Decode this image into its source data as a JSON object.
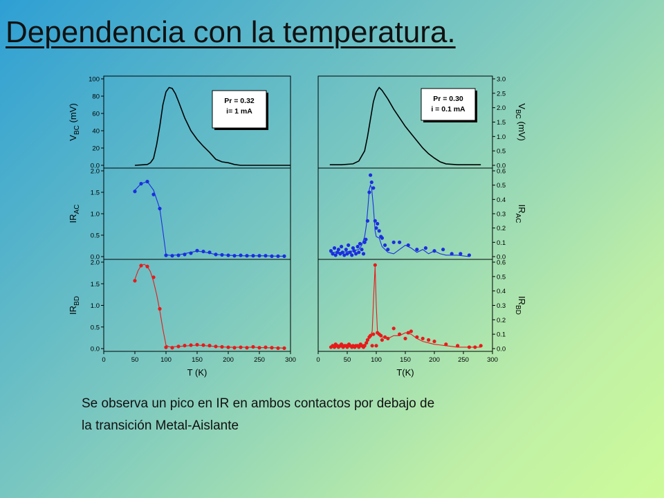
{
  "slide": {
    "title": "Dependencia con la temperatura.",
    "caption_lines": [
      "Se observa un pico en IR en ambos contactos por debajo de",
      "la transición Metal-Aislante"
    ]
  },
  "chart_data": [
    {
      "type": "line",
      "panel": "left-top",
      "ylabel_main": "V",
      "ylabel_sub": "BC",
      "ylabel_unit": " (mV)",
      "xlim": [
        0,
        300
      ],
      "ylim": [
        0,
        100
      ],
      "yticks": [
        "0.0",
        "20",
        "40",
        "60",
        "80",
        "100"
      ],
      "annotation": [
        "Pr = 0.32",
        "i= 1 mA"
      ],
      "color": "#000000",
      "series": [
        {
          "x": [
            50,
            60,
            70,
            75,
            80,
            85,
            90,
            95,
            100,
            105,
            110,
            115,
            120,
            130,
            140,
            150,
            160,
            170,
            180,
            190,
            200,
            210,
            220,
            250,
            300
          ],
          "y": [
            0,
            0.5,
            1,
            3,
            8,
            24,
            45,
            70,
            85,
            90,
            89,
            83,
            74,
            55,
            40,
            30,
            22,
            15,
            7,
            4,
            3,
            1,
            0,
            0,
            0
          ]
        }
      ]
    },
    {
      "type": "line",
      "panel": "right-top",
      "ylabel_main": "V",
      "ylabel_sub": "BC",
      "ylabel_unit": " (mV)",
      "xlim": [
        0,
        300
      ],
      "ylim": [
        0,
        3
      ],
      "yticks": [
        "0.0",
        "0.5",
        "1.0",
        "1.5",
        "2.0",
        "2.5",
        "3.0"
      ],
      "annotation": [
        "Pr = 0.30",
        "i = 0.1 mA"
      ],
      "color": "#000000",
      "series": [
        {
          "x": [
            20,
            40,
            60,
            70,
            80,
            85,
            90,
            95,
            100,
            105,
            110,
            115,
            120,
            130,
            140,
            150,
            160,
            170,
            180,
            190,
            200,
            210,
            220,
            240,
            260,
            280
          ],
          "y": [
            0.02,
            0.02,
            0.05,
            0.15,
            0.5,
            1.0,
            1.6,
            2.2,
            2.55,
            2.7,
            2.6,
            2.45,
            2.3,
            1.95,
            1.65,
            1.35,
            1.1,
            0.85,
            0.6,
            0.4,
            0.25,
            0.12,
            0.05,
            0.02,
            0.02,
            0.02
          ]
        }
      ]
    },
    {
      "type": "scatter",
      "panel": "left-middle",
      "ylabel_main": "IR",
      "ylabel_sub": "AC",
      "xlim": [
        0,
        300
      ],
      "ylim": [
        0,
        2.0
      ],
      "yticks": [
        "0.0",
        "0.5",
        "1.0",
        "1.5",
        "2.0"
      ],
      "color": "#1a2ee0",
      "series": [
        {
          "x": [
            50,
            60,
            70,
            80,
            90,
            100,
            110,
            120,
            130,
            140,
            150,
            160,
            170,
            180,
            190,
            200,
            210,
            220,
            230,
            240,
            250,
            260,
            270,
            280,
            290
          ],
          "y": [
            1.52,
            1.7,
            1.75,
            1.45,
            1.12,
            0.03,
            0.02,
            0.03,
            0.05,
            0.08,
            0.14,
            0.12,
            0.1,
            0.05,
            0.04,
            0.03,
            0.02,
            0.03,
            0.02,
            0.02,
            0.02,
            0.02,
            0.01,
            0.01,
            0.01
          ]
        }
      ],
      "fit": {
        "x": [
          50,
          60,
          70,
          80,
          90,
          95,
          100,
          105,
          110,
          120,
          130,
          140,
          150,
          160,
          170,
          180,
          190,
          200,
          220,
          240,
          260,
          280,
          290
        ],
        "y": [
          1.55,
          1.7,
          1.75,
          1.55,
          1.12,
          0.6,
          0.05,
          0.03,
          0.03,
          0.04,
          0.07,
          0.1,
          0.13,
          0.11,
          0.08,
          0.05,
          0.04,
          0.03,
          0.02,
          0.02,
          0.02,
          0.01,
          0.01
        ]
      }
    },
    {
      "type": "scatter",
      "panel": "right-middle",
      "ylabel_main": "IR",
      "ylabel_sub": "AC",
      "xlim": [
        0,
        300
      ],
      "ylim": [
        0,
        0.6
      ],
      "yticks": [
        "0.0",
        "0.1",
        "0.2",
        "0.3",
        "0.4",
        "0.5",
        "0.6"
      ],
      "color": "#1a2ee0",
      "series": [
        {
          "x": [
            22,
            25,
            28,
            30,
            33,
            35,
            38,
            40,
            42,
            45,
            48,
            50,
            52,
            55,
            58,
            60,
            62,
            65,
            68,
            70,
            72,
            75,
            78,
            80,
            82,
            85,
            88,
            90,
            92,
            95,
            98,
            100,
            102,
            105,
            108,
            110,
            115,
            120,
            130,
            140,
            155,
            170,
            185,
            200,
            215,
            230,
            245,
            260
          ],
          "y": [
            0.04,
            0.02,
            0.06,
            0.01,
            0.03,
            0.05,
            0.02,
            0.07,
            0.03,
            0.01,
            0.05,
            0.02,
            0.08,
            0.03,
            0.01,
            0.06,
            0.04,
            0.02,
            0.07,
            0.03,
            0.09,
            0.05,
            0.02,
            0.1,
            0.12,
            0.25,
            0.45,
            0.57,
            0.52,
            0.48,
            0.25,
            0.2,
            0.23,
            0.18,
            0.14,
            0.13,
            0.08,
            0.05,
            0.1,
            0.1,
            0.08,
            0.05,
            0.06,
            0.04,
            0.05,
            0.02,
            0.02,
            0.01
          ]
        }
      ],
      "fit": {
        "x": [
          20,
          40,
          60,
          70,
          75,
          80,
          83,
          86,
          88,
          90,
          92,
          95,
          98,
          100,
          105,
          110,
          120,
          130,
          140,
          150,
          160,
          170,
          180,
          190,
          200,
          210,
          220,
          240,
          260
        ],
        "y": [
          0.03,
          0.03,
          0.04,
          0.05,
          0.08,
          0.14,
          0.22,
          0.36,
          0.47,
          0.5,
          0.48,
          0.35,
          0.18,
          0.14,
          0.13,
          0.07,
          0.03,
          0.02,
          0.05,
          0.08,
          0.06,
          0.03,
          0.05,
          0.02,
          0.04,
          0.02,
          0.01,
          0.01,
          0.0
        ]
      }
    },
    {
      "type": "scatter",
      "panel": "left-bottom",
      "ylabel_main": "IR",
      "ylabel_sub": "BD",
      "xlim": [
        0,
        300
      ],
      "xlabel": "T (K)",
      "ylim": [
        0,
        2.0
      ],
      "xticks": [
        "0",
        "50",
        "100",
        "150",
        "200",
        "250",
        "300"
      ],
      "yticks": [
        "0.0",
        "0.5",
        "1.0",
        "1.5",
        "2.0"
      ],
      "color": "#e81a1a",
      "series": [
        {
          "x": [
            50,
            60,
            70,
            80,
            90,
            100,
            110,
            120,
            130,
            140,
            150,
            160,
            170,
            180,
            190,
            200,
            210,
            220,
            230,
            240,
            250,
            260,
            270,
            280,
            290
          ],
          "y": [
            1.57,
            1.92,
            1.9,
            1.65,
            0.92,
            0.03,
            0.02,
            0.05,
            0.07,
            0.08,
            0.09,
            0.08,
            0.07,
            0.05,
            0.04,
            0.03,
            0.02,
            0.03,
            0.02,
            0.04,
            0.02,
            0.03,
            0.02,
            0.01,
            0.01
          ]
        }
      ],
      "fit": {
        "x": [
          50,
          55,
          60,
          65,
          70,
          75,
          80,
          85,
          90,
          95,
          100,
          105,
          110,
          120,
          130,
          140,
          150,
          160,
          170,
          180,
          190,
          200,
          220,
          240,
          260,
          280,
          290
        ],
        "y": [
          1.6,
          1.8,
          1.92,
          1.95,
          1.9,
          1.78,
          1.55,
          1.25,
          0.88,
          0.45,
          0.08,
          0.04,
          0.04,
          0.05,
          0.06,
          0.07,
          0.08,
          0.07,
          0.06,
          0.05,
          0.04,
          0.03,
          0.03,
          0.03,
          0.02,
          0.02,
          0.01
        ]
      }
    },
    {
      "type": "scatter",
      "panel": "right-bottom",
      "ylabel_main": "IR",
      "ylabel_sub": "BD",
      "xlim": [
        0,
        300
      ],
      "xlabel": "T(K)",
      "ylim": [
        0,
        0.6
      ],
      "xticks": [
        "0",
        "50",
        "100",
        "150",
        "200",
        "250",
        "300"
      ],
      "yticks": [
        "0.0",
        "0.1",
        "0.2",
        "0.3",
        "0.4",
        "0.5",
        "0.6"
      ],
      "color": "#e81a1a",
      "series": [
        {
          "x": [
            22,
            25,
            28,
            30,
            33,
            35,
            38,
            40,
            43,
            45,
            48,
            50,
            53,
            55,
            58,
            60,
            63,
            65,
            68,
            70,
            73,
            75,
            78,
            80,
            83,
            85,
            88,
            90,
            93,
            95,
            98,
            100,
            102,
            105,
            108,
            110,
            115,
            120,
            130,
            140,
            150,
            155,
            160,
            170,
            180,
            190,
            200,
            220,
            240,
            260,
            270,
            280
          ],
          "y": [
            0.01,
            0.02,
            0.01,
            0.03,
            0.02,
            0.01,
            0.02,
            0.03,
            0.01,
            0.02,
            0.02,
            0.01,
            0.03,
            0.02,
            0.01,
            0.02,
            0.01,
            0.02,
            0.02,
            0.01,
            0.03,
            0.02,
            0.01,
            0.02,
            0.04,
            0.06,
            0.08,
            0.09,
            0.02,
            0.1,
            0.58,
            0.02,
            0.11,
            0.1,
            0.09,
            0.06,
            0.08,
            0.07,
            0.14,
            0.1,
            0.07,
            0.11,
            0.12,
            0.08,
            0.07,
            0.06,
            0.05,
            0.03,
            0.02,
            0.01,
            0.01,
            0.02
          ]
        }
      ],
      "fit": {
        "x": [
          20,
          40,
          60,
          70,
          80,
          85,
          88,
          90,
          93,
          96,
          98,
          100,
          102,
          104,
          107,
          110,
          120,
          130,
          140,
          150,
          160,
          170,
          180,
          190,
          200,
          220,
          240,
          260,
          280
        ],
        "y": [
          0.01,
          0.01,
          0.02,
          0.02,
          0.03,
          0.05,
          0.07,
          0.09,
          0.12,
          0.4,
          0.57,
          0.3,
          0.12,
          0.1,
          0.09,
          0.08,
          0.07,
          0.09,
          0.09,
          0.11,
          0.1,
          0.07,
          0.05,
          0.04,
          0.03,
          0.02,
          0.01,
          0.01,
          0.01
        ]
      }
    }
  ]
}
